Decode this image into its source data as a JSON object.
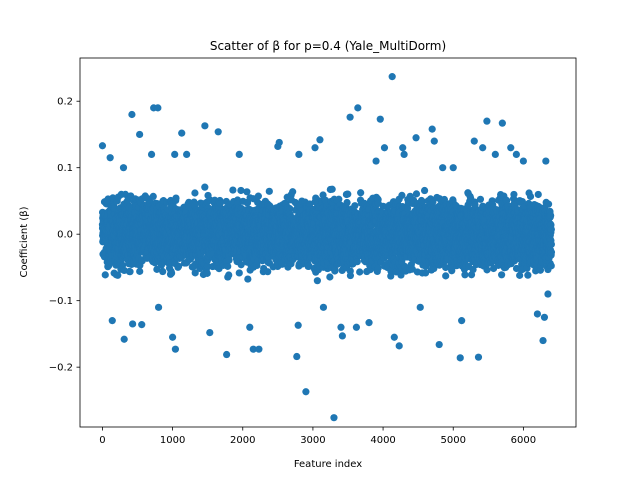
{
  "chart_data": {
    "type": "scatter",
    "title": "Scatter of β for p=0.4 (Yale_MultiDorm)",
    "xlabel": "Feature index",
    "ylabel": "Coefficient (β)",
    "xlim": [
      -320,
      6750
    ],
    "ylim": [
      -0.29,
      0.265
    ],
    "xticks": [
      0,
      1000,
      2000,
      3000,
      4000,
      5000,
      6000
    ],
    "yticks": [
      -0.2,
      -0.1,
      0.0,
      0.1,
      0.2
    ],
    "xtick_labels": [
      "0",
      "1000",
      "2000",
      "3000",
      "4000",
      "5000",
      "6000"
    ],
    "ytick_labels": [
      "−0.2",
      "−0.1",
      "0.0",
      "0.1",
      "0.2"
    ],
    "grid": false,
    "legend": "none",
    "marker_color": "#1f77b4",
    "n_points": 6400,
    "x_range": [
      0,
      6400
    ],
    "bulk_abs_limit": 0.07,
    "points": [
      {
        "x": 0,
        "y": 0.133
      },
      {
        "x": 60,
        "y": 0.05
      },
      {
        "x": 110,
        "y": 0.115
      },
      {
        "x": 140,
        "y": -0.13
      },
      {
        "x": 300,
        "y": 0.1
      },
      {
        "x": 310,
        "y": -0.158
      },
      {
        "x": 420,
        "y": 0.18
      },
      {
        "x": 430,
        "y": -0.135
      },
      {
        "x": 530,
        "y": 0.15
      },
      {
        "x": 560,
        "y": -0.136
      },
      {
        "x": 700,
        "y": 0.12
      },
      {
        "x": 730,
        "y": 0.19
      },
      {
        "x": 790,
        "y": 0.19
      },
      {
        "x": 800,
        "y": -0.11
      },
      {
        "x": 1000,
        "y": -0.155
      },
      {
        "x": 1030,
        "y": 0.12
      },
      {
        "x": 1040,
        "y": -0.173
      },
      {
        "x": 1130,
        "y": 0.152
      },
      {
        "x": 1200,
        "y": 0.12
      },
      {
        "x": 1460,
        "y": 0.163
      },
      {
        "x": 1530,
        "y": -0.148
      },
      {
        "x": 1650,
        "y": 0.154
      },
      {
        "x": 1770,
        "y": -0.181
      },
      {
        "x": 1950,
        "y": 0.12
      },
      {
        "x": 2100,
        "y": -0.14
      },
      {
        "x": 2150,
        "y": -0.173
      },
      {
        "x": 2230,
        "y": -0.173
      },
      {
        "x": 2500,
        "y": 0.132
      },
      {
        "x": 2520,
        "y": 0.138
      },
      {
        "x": 2770,
        "y": -0.184
      },
      {
        "x": 2790,
        "y": -0.137
      },
      {
        "x": 2800,
        "y": 0.12
      },
      {
        "x": 2900,
        "y": -0.237
      },
      {
        "x": 3030,
        "y": 0.13
      },
      {
        "x": 3100,
        "y": 0.142
      },
      {
        "x": 3150,
        "y": -0.11
      },
      {
        "x": 3300,
        "y": -0.276
      },
      {
        "x": 3400,
        "y": -0.14
      },
      {
        "x": 3420,
        "y": -0.153
      },
      {
        "x": 3530,
        "y": 0.176
      },
      {
        "x": 3620,
        "y": -0.14
      },
      {
        "x": 3640,
        "y": 0.19
      },
      {
        "x": 3800,
        "y": -0.133
      },
      {
        "x": 3900,
        "y": 0.11
      },
      {
        "x": 3960,
        "y": 0.173
      },
      {
        "x": 4020,
        "y": 0.13
      },
      {
        "x": 4130,
        "y": 0.237
      },
      {
        "x": 4160,
        "y": -0.155
      },
      {
        "x": 4230,
        "y": -0.168
      },
      {
        "x": 4280,
        "y": 0.13
      },
      {
        "x": 4300,
        "y": 0.12
      },
      {
        "x": 4470,
        "y": 0.145
      },
      {
        "x": 4530,
        "y": -0.11
      },
      {
        "x": 4700,
        "y": 0.158
      },
      {
        "x": 4730,
        "y": 0.14
      },
      {
        "x": 4800,
        "y": -0.166
      },
      {
        "x": 4850,
        "y": 0.1
      },
      {
        "x": 5000,
        "y": 0.1
      },
      {
        "x": 5100,
        "y": -0.186
      },
      {
        "x": 5120,
        "y": -0.13
      },
      {
        "x": 5300,
        "y": 0.14
      },
      {
        "x": 5360,
        "y": -0.185
      },
      {
        "x": 5420,
        "y": 0.13
      },
      {
        "x": 5480,
        "y": 0.17
      },
      {
        "x": 5600,
        "y": 0.12
      },
      {
        "x": 5700,
        "y": 0.167
      },
      {
        "x": 5820,
        "y": 0.13
      },
      {
        "x": 5900,
        "y": 0.12
      },
      {
        "x": 6000,
        "y": 0.11
      },
      {
        "x": 6200,
        "y": -0.12
      },
      {
        "x": 6280,
        "y": -0.16
      },
      {
        "x": 6300,
        "y": -0.125
      },
      {
        "x": 6320,
        "y": 0.11
      },
      {
        "x": 6350,
        "y": -0.09
      }
    ]
  }
}
